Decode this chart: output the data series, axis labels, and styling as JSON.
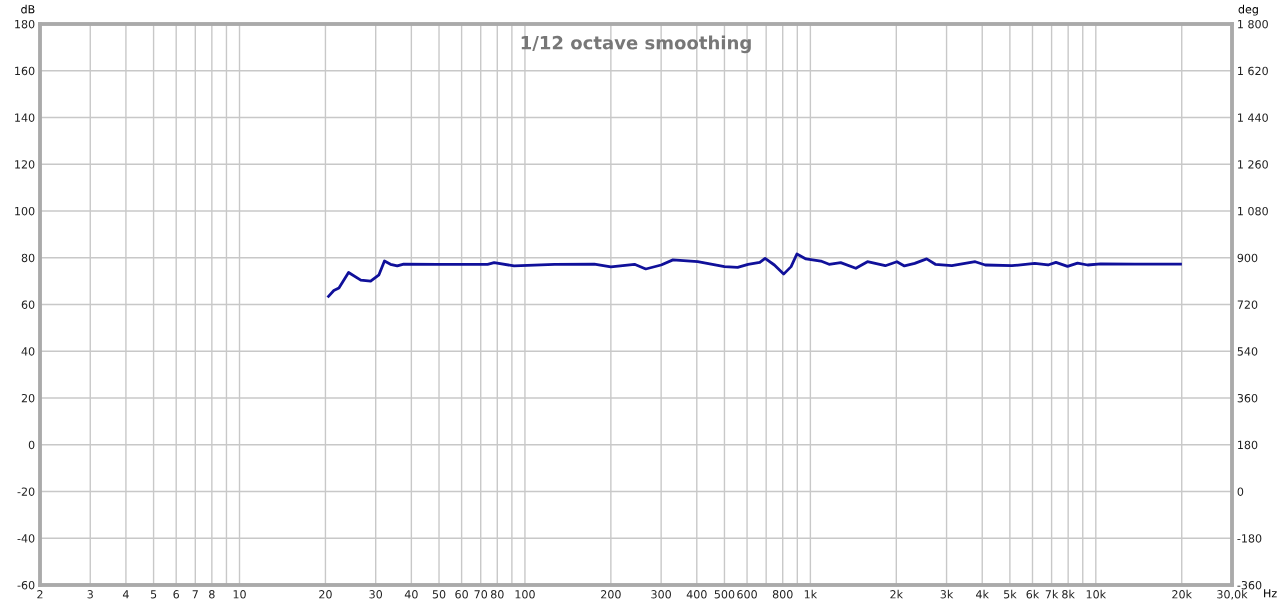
{
  "chart_data": {
    "type": "line",
    "title": "1/12 octave smoothing",
    "xlabel": "Hz",
    "ylabel": "dB",
    "y2label": "deg",
    "log": "x",
    "grid": true,
    "marker": "none",
    "line_style": "solid",
    "xlim": [
      2,
      30000
    ],
    "xticks": [
      2,
      3,
      4,
      5,
      6,
      7,
      8,
      {
        "value": 9,
        "label": null
      },
      10,
      20,
      30,
      40,
      50,
      60,
      70,
      80,
      {
        "value": 90,
        "label": null
      },
      100,
      200,
      300,
      400,
      500,
      600,
      {
        "value": 700,
        "label": null
      },
      800,
      {
        "value": 900,
        "label": null
      },
      {
        "value": 1000,
        "label": "1k"
      },
      {
        "value": 2000,
        "label": "2k"
      },
      {
        "value": 3000,
        "label": "3k"
      },
      {
        "value": 4000,
        "label": "4k"
      },
      {
        "value": 5000,
        "label": "5k"
      },
      {
        "value": 6000,
        "label": "6k"
      },
      {
        "value": 7000,
        "label": "7k"
      },
      {
        "value": 8000,
        "label": "8k"
      },
      {
        "value": 9000,
        "label": null
      },
      {
        "value": 10000,
        "label": "10k"
      },
      {
        "value": 20000,
        "label": "20k"
      },
      {
        "value": 30000,
        "label": "30,0k"
      }
    ],
    "ylim": [
      -60,
      180
    ],
    "yticks": [
      -60,
      -40,
      -20,
      0,
      20,
      40,
      60,
      80,
      100,
      120,
      140,
      160,
      180
    ],
    "y2lim": [
      -360,
      1800
    ],
    "y2ticks": [
      -360,
      -180,
      0,
      180,
      360,
      540,
      720,
      900,
      {
        "value": 1080,
        "label": "1 080"
      },
      {
        "value": 1260,
        "label": "1 260"
      },
      {
        "value": 1440,
        "label": "1 440"
      },
      {
        "value": 1620,
        "label": "1 620"
      },
      {
        "value": 1800,
        "label": "1 800"
      }
    ],
    "series": [
      {
        "color": "#10109a",
        "x": [
          20.5,
          21.4,
          22.3,
          24.1,
          26.6,
          28.8,
          30.8,
          32.2,
          33.8,
          35.7,
          37.6,
          49.4,
          74,
          78,
          91.6,
          127,
          175,
          200,
          242,
          265,
          300,
          330,
          403,
          500,
          556,
          605,
          665,
          694,
          748,
          806,
          856,
          897,
          965,
          1088,
          1163,
          1277,
          1443,
          1585,
          1830,
          2010,
          2135,
          2320,
          2555,
          2740,
          3130,
          3780,
          4100,
          5080,
          6110,
          6800,
          7250,
          7960,
          8630,
          9360,
          10400,
          13700,
          19800
        ],
        "values": [
          63.5,
          66,
          67.1,
          73.7,
          70.4,
          70,
          72.7,
          78.6,
          77.2,
          76.5,
          77.3,
          77.2,
          77.2,
          77.9,
          76.5,
          77.2,
          77.3,
          76.1,
          77.2,
          75.2,
          76.9,
          79.1,
          78.3,
          76.2,
          75.9,
          77.2,
          78,
          79.7,
          76.9,
          73,
          76.2,
          81.6,
          79.5,
          78.6,
          77.2,
          77.9,
          75.5,
          78.3,
          76.6,
          78.3,
          76.5,
          77.6,
          79.5,
          77.2,
          76.6,
          78.3,
          76.9,
          76.6,
          77.6,
          76.9,
          78,
          76.3,
          77.7,
          76.9,
          77.4,
          77.3,
          77.3
        ]
      }
    ]
  }
}
